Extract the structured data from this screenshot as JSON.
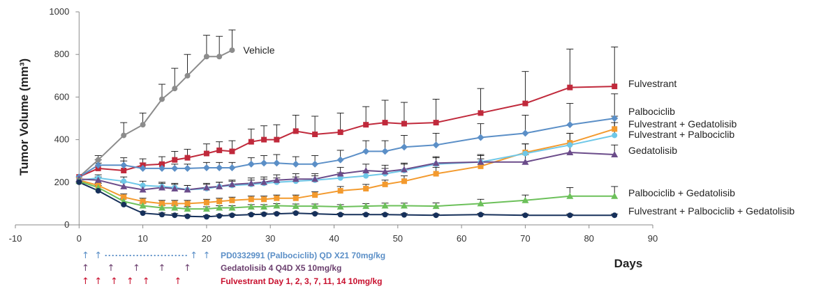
{
  "chart_data": {
    "type": "line",
    "title": "",
    "ylabel": "Tumor Volume (mm³)",
    "xlabel": "Days",
    "xlim": [
      -10,
      90
    ],
    "ylim": [
      0,
      1000
    ],
    "x_ticks": [
      -10,
      0,
      10,
      20,
      30,
      40,
      50,
      60,
      70,
      80,
      90
    ],
    "y_ticks": [
      0,
      200,
      400,
      600,
      800,
      1000
    ],
    "grid": false,
    "legend": "labels at line ends",
    "series": [
      {
        "name": "Vehicle",
        "color": "#8c8c8c",
        "marker": "circle",
        "points": [
          [
            0,
            225
          ],
          [
            3,
            305
          ],
          [
            7,
            420
          ],
          [
            10,
            470
          ],
          [
            13,
            590
          ],
          [
            15,
            640
          ],
          [
            17,
            700
          ],
          [
            20,
            790
          ],
          [
            22,
            790
          ],
          [
            24,
            820
          ]
        ],
        "err": [
          0,
          20,
          60,
          55,
          70,
          95,
          100,
          100,
          95,
          95
        ]
      },
      {
        "name": "Fulvestrant",
        "color": "#c0293b",
        "marker": "square",
        "points": [
          [
            0,
            225
          ],
          [
            3,
            265
          ],
          [
            7,
            255
          ],
          [
            10,
            280
          ],
          [
            13,
            285
          ],
          [
            15,
            305
          ],
          [
            17,
            315
          ],
          [
            20,
            335
          ],
          [
            22,
            350
          ],
          [
            24,
            345
          ],
          [
            27,
            390
          ],
          [
            29,
            400
          ],
          [
            31,
            400
          ],
          [
            34,
            440
          ],
          [
            37,
            425
          ],
          [
            41,
            435
          ],
          [
            45,
            470
          ],
          [
            48,
            480
          ],
          [
            51,
            475
          ],
          [
            56,
            480
          ],
          [
            63,
            525
          ],
          [
            70,
            570
          ],
          [
            77,
            645
          ],
          [
            84,
            650
          ]
        ],
        "err": [
          0,
          25,
          45,
          30,
          35,
          40,
          40,
          45,
          40,
          50,
          60,
          65,
          70,
          75,
          85,
          90,
          85,
          105,
          100,
          110,
          115,
          150,
          180,
          185
        ]
      },
      {
        "name": "Palbociclib",
        "color": "#5b8fc7",
        "marker": "diamond",
        "points": [
          [
            0,
            225
          ],
          [
            3,
            280
          ],
          [
            7,
            280
          ],
          [
            10,
            265
          ],
          [
            13,
            265
          ],
          [
            15,
            265
          ],
          [
            17,
            265
          ],
          [
            20,
            268
          ],
          [
            22,
            268
          ],
          [
            24,
            268
          ],
          [
            27,
            285
          ],
          [
            29,
            290
          ],
          [
            31,
            290
          ],
          [
            34,
            285
          ],
          [
            37,
            285
          ],
          [
            41,
            305
          ],
          [
            45,
            345
          ],
          [
            48,
            345
          ],
          [
            51,
            365
          ],
          [
            56,
            375
          ],
          [
            63,
            410
          ],
          [
            70,
            430
          ],
          [
            77,
            470
          ],
          [
            84,
            500
          ]
        ],
        "err": [
          0,
          25,
          35,
          25,
          25,
          20,
          20,
          25,
          25,
          25,
          30,
          35,
          40,
          35,
          40,
          45,
          50,
          50,
          55,
          55,
          65,
          85,
          100,
          115
        ]
      },
      {
        "name": "Fulvestrant + Gedatolisib",
        "color": "#f39a2e",
        "marker": "square",
        "points": [
          [
            0,
            210
          ],
          [
            3,
            185
          ],
          [
            7,
            130
          ],
          [
            10,
            110
          ],
          [
            13,
            100
          ],
          [
            15,
            100
          ],
          [
            17,
            100
          ],
          [
            20,
            105
          ],
          [
            22,
            110
          ],
          [
            24,
            115
          ],
          [
            27,
            120
          ],
          [
            29,
            120
          ],
          [
            31,
            125
          ],
          [
            34,
            125
          ],
          [
            37,
            140
          ],
          [
            41,
            160
          ],
          [
            45,
            170
          ],
          [
            48,
            190
          ],
          [
            51,
            205
          ],
          [
            56,
            240
          ],
          [
            63,
            275
          ],
          [
            70,
            340
          ],
          [
            77,
            385
          ],
          [
            84,
            450
          ]
        ],
        "err": [
          0,
          10,
          15,
          15,
          15,
          15,
          15,
          15,
          15,
          15,
          15,
          15,
          15,
          15,
          15,
          20,
          20,
          20,
          25,
          30,
          35,
          40,
          45,
          60
        ]
      },
      {
        "name": "Fulvestrant + Palbociclib",
        "color": "#6fc8e8",
        "marker": "circle",
        "points": [
          [
            0,
            210
          ],
          [
            3,
            220
          ],
          [
            7,
            205
          ],
          [
            10,
            185
          ],
          [
            13,
            180
          ],
          [
            15,
            175
          ],
          [
            17,
            165
          ],
          [
            20,
            170
          ],
          [
            22,
            180
          ],
          [
            24,
            185
          ],
          [
            27,
            190
          ],
          [
            29,
            195
          ],
          [
            31,
            200
          ],
          [
            34,
            205
          ],
          [
            37,
            210
          ],
          [
            41,
            220
          ],
          [
            45,
            230
          ],
          [
            48,
            240
          ],
          [
            51,
            255
          ],
          [
            56,
            285
          ],
          [
            63,
            295
          ],
          [
            70,
            335
          ],
          [
            77,
            375
          ],
          [
            84,
            420
          ]
        ],
        "err": [
          0,
          15,
          20,
          20,
          20,
          20,
          20,
          20,
          20,
          20,
          20,
          20,
          20,
          20,
          20,
          25,
          25,
          25,
          30,
          30,
          35,
          45,
          55,
          60
        ]
      },
      {
        "name": "Gedatolisib",
        "color": "#6b4c8a",
        "marker": "triangle",
        "points": [
          [
            0,
            215
          ],
          [
            3,
            210
          ],
          [
            7,
            180
          ],
          [
            10,
            165
          ],
          [
            13,
            175
          ],
          [
            15,
            170
          ],
          [
            17,
            165
          ],
          [
            20,
            175
          ],
          [
            22,
            180
          ],
          [
            24,
            190
          ],
          [
            27,
            195
          ],
          [
            29,
            200
          ],
          [
            31,
            210
          ],
          [
            34,
            215
          ],
          [
            37,
            215
          ],
          [
            41,
            240
          ],
          [
            45,
            255
          ],
          [
            48,
            250
          ],
          [
            51,
            260
          ],
          [
            56,
            290
          ],
          [
            63,
            295
          ],
          [
            70,
            295
          ],
          [
            77,
            340
          ],
          [
            84,
            330
          ]
        ],
        "err": [
          0,
          15,
          20,
          20,
          20,
          20,
          20,
          20,
          20,
          20,
          25,
          25,
          25,
          25,
          25,
          30,
          30,
          30,
          30,
          30,
          30,
          35,
          40,
          45
        ]
      },
      {
        "name": "Palbociclib + Gedatolisib",
        "color": "#6cc05a",
        "marker": "triangle",
        "points": [
          [
            0,
            205
          ],
          [
            3,
            175
          ],
          [
            7,
            110
          ],
          [
            10,
            90
          ],
          [
            13,
            80
          ],
          [
            15,
            80
          ],
          [
            17,
            75
          ],
          [
            20,
            75
          ],
          [
            22,
            80
          ],
          [
            24,
            80
          ],
          [
            27,
            85
          ],
          [
            29,
            85
          ],
          [
            31,
            90
          ],
          [
            34,
            88
          ],
          [
            37,
            88
          ],
          [
            41,
            85
          ],
          [
            45,
            88
          ],
          [
            48,
            90
          ],
          [
            51,
            90
          ],
          [
            56,
            88
          ],
          [
            63,
            100
          ],
          [
            70,
            115
          ],
          [
            77,
            135
          ],
          [
            84,
            135
          ]
        ],
        "err": [
          0,
          10,
          15,
          12,
          12,
          12,
          10,
          10,
          10,
          10,
          10,
          10,
          10,
          10,
          10,
          10,
          12,
          12,
          12,
          15,
          20,
          25,
          40,
          45
        ]
      },
      {
        "name": "Fulvestrant + Palbociclib + Gedatolisib",
        "color": "#16305a",
        "marker": "circle",
        "points": [
          [
            0,
            200
          ],
          [
            3,
            160
          ],
          [
            7,
            95
          ],
          [
            10,
            55
          ],
          [
            13,
            48
          ],
          [
            15,
            45
          ],
          [
            17,
            40
          ],
          [
            20,
            38
          ],
          [
            22,
            42
          ],
          [
            24,
            45
          ],
          [
            27,
            48
          ],
          [
            29,
            50
          ],
          [
            31,
            52
          ],
          [
            34,
            55
          ],
          [
            37,
            52
          ],
          [
            41,
            48
          ],
          [
            45,
            48
          ],
          [
            48,
            48
          ],
          [
            51,
            47
          ],
          [
            56,
            45
          ],
          [
            63,
            48
          ],
          [
            70,
            45
          ],
          [
            77,
            45
          ],
          [
            84,
            45
          ]
        ],
        "err": [
          0,
          8,
          10,
          8,
          8,
          8,
          6,
          6,
          6,
          6,
          6,
          6,
          6,
          6,
          6,
          6,
          6,
          6,
          6,
          6,
          6,
          6,
          6,
          6
        ]
      }
    ],
    "dosing": [
      {
        "label": "PD0332991 (Palbociclib) QD X21 70mg/kg",
        "color": "#5b8fc7",
        "days": [
          1,
          3,
          18,
          20
        ],
        "dotted_between": [
          3,
          18
        ]
      },
      {
        "label": "Gedatolisib 4 Q4D X5 10mg/kg",
        "color": "#6b3f6e",
        "days": [
          1,
          5,
          9,
          13,
          17
        ]
      },
      {
        "label": "Fulvestrant Day 1, 2, 3, 7, 11, 14 10mg/kg",
        "color": "#c8102e",
        "days": [
          1,
          3,
          5.5,
          8,
          10.5,
          15.5
        ]
      }
    ]
  }
}
